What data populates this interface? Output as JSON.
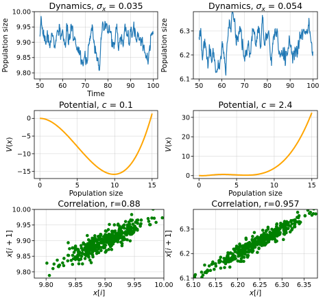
{
  "chart_data": [
    {
      "id": "dyn1",
      "type": "line",
      "title": "Dynamics, σ_x = 0.035",
      "xlabel": "Time",
      "ylabel": "Population size",
      "xlim": [
        47.5,
        102
      ],
      "ylim": [
        9.78,
        10.0
      ],
      "xticks": [
        50,
        60,
        70,
        80,
        90,
        100
      ],
      "yticks": [
        9.8,
        9.85,
        9.9,
        9.95,
        10.0
      ],
      "yticklabels": [
        "9.80",
        "9.85",
        "9.90",
        "9.95",
        "10.00"
      ],
      "grid": true,
      "color": "#1f77b4",
      "series_spec": {
        "x_start": 50,
        "x_end": 100,
        "n": 400,
        "mean": 9.9,
        "sd": 0.035,
        "seed": 7
      }
    },
    {
      "id": "dyn2",
      "type": "line",
      "title": "Dynamics, σ_x = 0.054",
      "xlabel": "",
      "ylabel": "Population size",
      "xlim": [
        47.5,
        102
      ],
      "ylim": [
        6.1,
        6.38
      ],
      "xticks": [
        50,
        60,
        70,
        80,
        90,
        100
      ],
      "yticks": [
        6.1,
        6.2,
        6.3
      ],
      "yticklabels": [
        "6.1",
        "6.2",
        "6.3"
      ],
      "grid": true,
      "color": "#1f77b4",
      "series_spec": {
        "x_start": 50,
        "x_end": 100,
        "n": 400,
        "mean": 6.24,
        "sd": 0.054,
        "seed": 19
      }
    },
    {
      "id": "pot1",
      "type": "line",
      "title": "Potential, c = 0.1",
      "xlabel": "Population size",
      "ylabel": "V(x)",
      "xlim": [
        -0.75,
        15.75
      ],
      "ylim": [
        -17,
        2.2
      ],
      "xticks": [
        0,
        5,
        10,
        15
      ],
      "yticks": [
        -15,
        -10,
        -5,
        0
      ],
      "yticklabels": [
        "−15",
        "−10",
        "−5",
        "0"
      ],
      "grid": true,
      "color": "#ffa500",
      "potential": {
        "c": 0.1
      }
    },
    {
      "id": "pot2",
      "type": "line",
      "title": "Potential, c = 2.4",
      "xlabel": "Population size",
      "ylabel": "V(x)",
      "xlim": [
        -0.75,
        15.75
      ],
      "ylim": [
        -1.5,
        33.5
      ],
      "xticks": [
        0,
        5,
        10,
        15
      ],
      "yticks": [
        0,
        10,
        20,
        30
      ],
      "yticklabels": [
        "0",
        "10",
        "20",
        "30"
      ],
      "grid": true,
      "color": "#ffa500",
      "potential": {
        "c": 2.4
      }
    },
    {
      "id": "cor1",
      "type": "scatter",
      "title": "Correlation, r=0.88",
      "xlabel": "x[i]",
      "ylabel": "x[i + 1]",
      "xlim": [
        9.78,
        10.0
      ],
      "ylim": [
        9.78,
        10.0
      ],
      "xticks": [
        9.8,
        9.85,
        9.9,
        9.95,
        10.0
      ],
      "xticklabels": [
        "9.80",
        "9.85",
        "9.90",
        "9.95",
        "10.00"
      ],
      "yticks": [
        9.8,
        9.85,
        9.9,
        9.95,
        10.0
      ],
      "yticklabels": [
        "9.80",
        "9.85",
        "9.90",
        "9.95",
        "10.00"
      ],
      "grid": true,
      "color": "#008000",
      "scatter_spec": {
        "n": 400,
        "mean": 9.9,
        "sd": 0.035,
        "r": 0.88,
        "seed": 11
      }
    },
    {
      "id": "cor2",
      "type": "scatter",
      "title": "Correlation, r=0.957",
      "xlabel": "x[i]",
      "ylabel": "x[i + 1]",
      "xlim": [
        6.1,
        6.38
      ],
      "ylim": [
        6.1,
        6.38
      ],
      "xticks": [
        6.1,
        6.15,
        6.2,
        6.25,
        6.3,
        6.35
      ],
      "xticklabels": [
        "6.10",
        "6.15",
        "6.20",
        "6.25",
        "6.30",
        "6.35"
      ],
      "yticks": [
        6.1,
        6.2,
        6.3
      ],
      "yticklabels": [
        "6.1",
        "6.2",
        "6.3"
      ],
      "grid": true,
      "color": "#008000",
      "scatter_spec": {
        "n": 400,
        "mean": 6.24,
        "sd": 0.054,
        "r": 0.957,
        "seed": 23
      }
    }
  ]
}
